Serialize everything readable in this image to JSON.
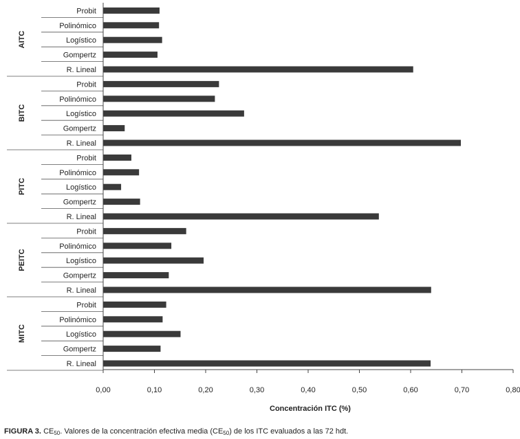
{
  "chart_data": {
    "type": "bar",
    "orientation": "horizontal",
    "xlabel": "Concentración ITC (%)",
    "xlim": [
      0,
      0.8
    ],
    "xticks": [
      "0,00",
      "0,10",
      "0,20",
      "0,30",
      "0,40",
      "0,50",
      "0,60",
      "0,70",
      "0,80"
    ],
    "grid": false,
    "bar_color": "#3a3a3a",
    "groups": [
      {
        "name": "AITC",
        "items": [
          {
            "label": "Probit",
            "value": 0.11
          },
          {
            "label": "Polinómico",
            "value": 0.109
          },
          {
            "label": "Logístico",
            "value": 0.115
          },
          {
            "label": "Gompertz",
            "value": 0.106
          },
          {
            "label": "R. Lineal",
            "value": 0.605
          }
        ]
      },
      {
        "name": "BITC",
        "items": [
          {
            "label": "Probit",
            "value": 0.226
          },
          {
            "label": "Polinómico",
            "value": 0.218
          },
          {
            "label": "Logístico",
            "value": 0.275
          },
          {
            "label": "Gompertz",
            "value": 0.042
          },
          {
            "label": "R. Lineal",
            "value": 0.698
          }
        ]
      },
      {
        "name": "PITC",
        "items": [
          {
            "label": "Probit",
            "value": 0.055
          },
          {
            "label": "Polinómico",
            "value": 0.07
          },
          {
            "label": "Logístico",
            "value": 0.035
          },
          {
            "label": "Gompertz",
            "value": 0.072
          },
          {
            "label": "R. Lineal",
            "value": 0.538
          }
        ]
      },
      {
        "name": "PEITC",
        "items": [
          {
            "label": "Probit",
            "value": 0.162
          },
          {
            "label": "Polinómico",
            "value": 0.133
          },
          {
            "label": "Logístico",
            "value": 0.196
          },
          {
            "label": "Gompertz",
            "value": 0.128
          },
          {
            "label": "R. Lineal",
            "value": 0.64
          }
        ]
      },
      {
        "name": "MITC",
        "items": [
          {
            "label": "Probit",
            "value": 0.123
          },
          {
            "label": "Polinómico",
            "value": 0.116
          },
          {
            "label": "Logístico",
            "value": 0.151
          },
          {
            "label": "Gompertz",
            "value": 0.112
          },
          {
            "label": "R. Lineal",
            "value": 0.639
          }
        ]
      }
    ]
  },
  "caption": {
    "label": "FIGURA 3.",
    "ce": "CE",
    "sub1": "50",
    "text1": ". Valores de la concentración efectiva media (CE",
    "sub2": "50",
    "text2": ") de los ITC evaluados a las 72 hdt."
  }
}
